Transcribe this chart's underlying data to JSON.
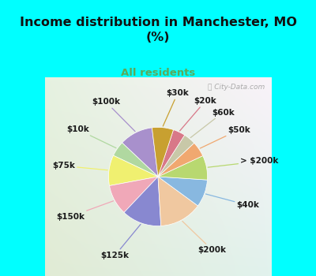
{
  "title": "Income distribution in Manchester, MO\n(%)",
  "subtitle": "All residents",
  "title_color": "#111111",
  "subtitle_color": "#5aaa5a",
  "bg_cyan": "#00ffff",
  "watermark": "City-Data.com",
  "labels": [
    "$100k",
    "$10k",
    "$75k",
    "$150k",
    "$125k",
    "$200k",
    "$40k",
    "> $200k",
    "$50k",
    "$60k",
    "$20k",
    "$30k"
  ],
  "values": [
    11,
    5,
    10,
    10,
    13,
    14,
    9,
    8,
    5,
    4,
    4,
    7
  ],
  "colors": [
    "#a890cc",
    "#b0d8a0",
    "#f0f070",
    "#f0a8b8",
    "#8888d0",
    "#f0c8a0",
    "#88b8e0",
    "#b8d870",
    "#f0a870",
    "#c8c8a8",
    "#d87888",
    "#c8a030"
  ],
  "label_fontsize": 7.5,
  "figsize": [
    4.0,
    3.5
  ],
  "dpi": 100,
  "startangle": 97
}
